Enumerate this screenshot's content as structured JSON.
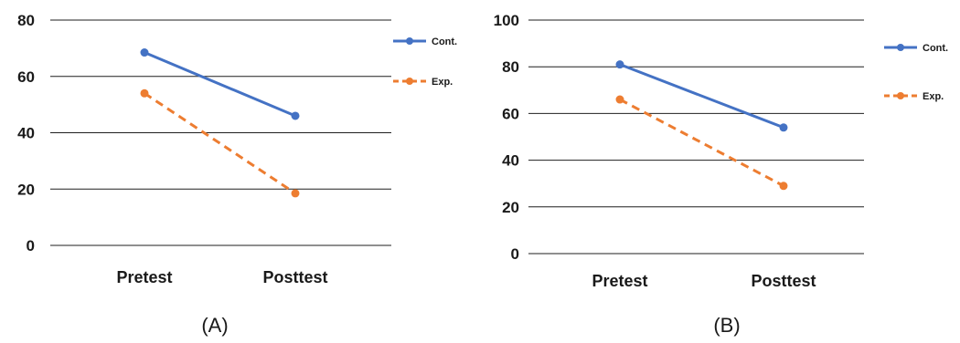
{
  "chart_data": [
    {
      "type": "line",
      "panel_label": "(A)",
      "categories": [
        "Pretest",
        "Posttest"
      ],
      "ylim": [
        0,
        80
      ],
      "yticks": [
        0,
        20,
        40,
        60,
        80
      ],
      "grid": true,
      "legend_position": "right",
      "series": [
        {
          "name": "Cont.",
          "values": [
            68.5,
            46
          ],
          "color": "#4472C4",
          "dashed": false
        },
        {
          "name": "Exp.",
          "values": [
            54,
            18.5
          ],
          "color": "#ED7D31",
          "dashed": true
        }
      ]
    },
    {
      "type": "line",
      "panel_label": "(B)",
      "categories": [
        "Pretest",
        "Posttest"
      ],
      "ylim": [
        0,
        100
      ],
      "yticks": [
        0,
        20,
        40,
        60,
        80,
        100
      ],
      "grid": true,
      "legend_position": "right",
      "series": [
        {
          "name": "Cont.",
          "values": [
            81,
            54
          ],
          "color": "#4472C4",
          "dashed": false
        },
        {
          "name": "Exp.",
          "values": [
            66,
            29
          ],
          "color": "#ED7D31",
          "dashed": true
        }
      ]
    }
  ]
}
